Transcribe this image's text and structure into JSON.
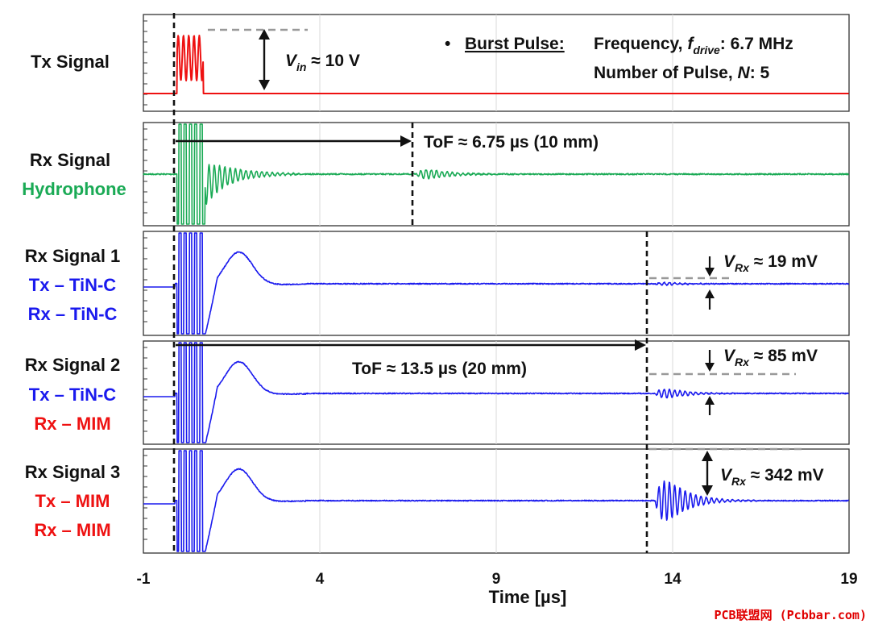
{
  "chart_data": {
    "type": "line",
    "xlabel": "Time [µs]",
    "xlim": [
      -1,
      19
    ],
    "xticks": [
      -1,
      4,
      9,
      14,
      19
    ],
    "grid": "vertical",
    "colors": {
      "red": "#ee1111",
      "green": "#1aaa55",
      "blue": "#1a1aee",
      "black": "#111111"
    },
    "panels": [
      {
        "id": "tx",
        "labels": [
          {
            "text": "Tx Signal",
            "color": "black"
          }
        ],
        "series": {
          "name": "Tx burst",
          "color": "red",
          "baseline": 0,
          "burst": {
            "start": -0.05,
            "end": 0.7,
            "freq_mhz": 6.7,
            "pulses": 5,
            "amplitude_v": 10
          }
        },
        "annotations": {
          "vin": {
            "pre": "V",
            "sub": "in",
            "post": " ≈ 10 V"
          },
          "burst_title": "Burst Pulse:",
          "bullet": "•",
          "freq_pre": "Frequency, ",
          "freq_f": "f",
          "freq_sub": "drive",
          "freq_post": ": 6.7 MHz",
          "npulse_pre": "Number of Pulse, ",
          "npulse_n": "N",
          "npulse_post": ": 5"
        }
      },
      {
        "id": "rx_hydrophone",
        "labels": [
          {
            "text": "Rx Signal",
            "color": "black"
          },
          {
            "text": "Hydrophone",
            "color": "green"
          }
        ],
        "series": {
          "name": "Hydrophone",
          "color": "green",
          "echo_time_us": 6.75,
          "echo_amplitude_rel": 0.3
        },
        "annotations": {
          "tof": "ToF ≈ 6.75 µs (10 mm)",
          "tof_value_us": 6.75
        }
      },
      {
        "id": "rx1",
        "labels": [
          {
            "text": "Rx Signal 1",
            "color": "black"
          },
          {
            "text": "Tx – TiN-C",
            "color": "blue"
          },
          {
            "text": "Rx – TiN-C",
            "color": "blue"
          }
        ],
        "series": {
          "name": "Rx Signal 1",
          "color": "blue",
          "echo_time_us": 13.5,
          "vrx_mv": 19
        },
        "annotations": {
          "vrx": {
            "pre": "V",
            "sub": "Rx",
            "post": " ≈ 19 mV"
          }
        }
      },
      {
        "id": "rx2",
        "labels": [
          {
            "text": "Rx Signal 2",
            "color": "black"
          },
          {
            "text": "Tx – TiN-C",
            "color": "blue"
          },
          {
            "text": "Rx – MIM",
            "color": "red"
          }
        ],
        "series": {
          "name": "Rx Signal 2",
          "color": "blue",
          "echo_time_us": 13.5,
          "vrx_mv": 85
        },
        "annotations": {
          "tof": "ToF ≈ 13.5 µs (20 mm)",
          "tof_value_us": 13.5,
          "vrx": {
            "pre": "V",
            "sub": "Rx",
            "post": " ≈ 85 mV"
          }
        }
      },
      {
        "id": "rx3",
        "labels": [
          {
            "text": "Rx Signal 3",
            "color": "black"
          },
          {
            "text": "Tx – MIM",
            "color": "red"
          },
          {
            "text": "Rx – MIM",
            "color": "red"
          }
        ],
        "series": {
          "name": "Rx Signal 3",
          "color": "blue",
          "echo_time_us": 13.5,
          "vrx_mv": 342
        },
        "annotations": {
          "vrx": {
            "pre": "V",
            "sub": "Rx",
            "post": " ≈ 342 mV"
          }
        }
      }
    ],
    "markers_us": {
      "start": -0.1,
      "hydrophone_echo": 6.75,
      "echo_20mm": 13.5
    }
  },
  "watermark": "PCB联盟网 (Pcbbar.com)"
}
